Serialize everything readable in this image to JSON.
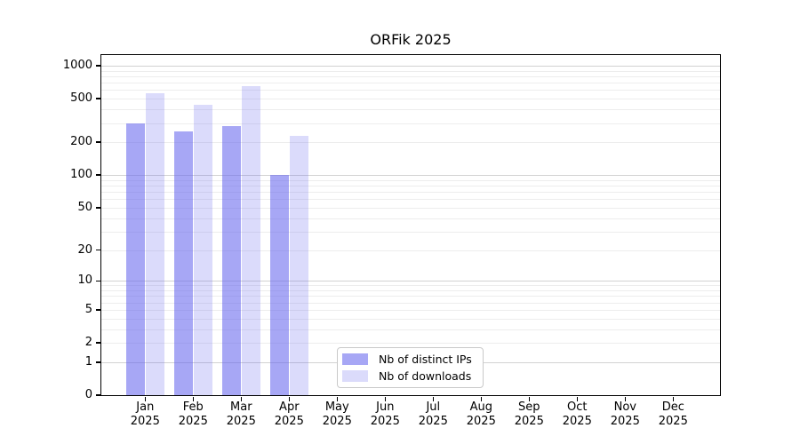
{
  "chart_data": {
    "type": "bar",
    "title": "ORFik 2025",
    "categories": [
      "Jan",
      "Feb",
      "Mar",
      "Apr",
      "May",
      "Jun",
      "Jul",
      "Aug",
      "Sep",
      "Oct",
      "Nov",
      "Dec"
    ],
    "category_year_line": "2025",
    "series": [
      {
        "name": "Nb of distinct IPs",
        "color": "rgba(100,100,237,0.57)",
        "values": [
          300,
          250,
          280,
          100,
          null,
          null,
          null,
          null,
          null,
          null,
          null,
          null
        ]
      },
      {
        "name": "Nb of downloads",
        "color": "rgba(100,100,237,0.23)",
        "values": [
          560,
          440,
          650,
          230,
          null,
          null,
          null,
          null,
          null,
          null,
          null,
          null
        ]
      }
    ],
    "y_axis": {
      "scale": "log10(1+y)",
      "ticks": [
        0,
        1,
        2,
        5,
        10,
        20,
        50,
        100,
        200,
        500,
        1000
      ],
      "major_gridlines": [
        1,
        10,
        100,
        1000
      ],
      "minor_gridline_decades": [
        1,
        10,
        100
      ],
      "ylim": [
        0,
        1250
      ]
    },
    "xlabel": "",
    "ylabel": "",
    "grid": true,
    "legend": {
      "position": "lower center",
      "entries": [
        "Nb of distinct IPs",
        "Nb of downloads"
      ]
    }
  },
  "colors": {
    "background": "#ffffff",
    "spine": "#000000",
    "gridline_major": "#d2d2d2",
    "gridline_minor": "#ededed",
    "bar_distinct_ips": "rgba(100,100,237,0.57)",
    "bar_downloads": "rgba(100,100,237,0.23)",
    "legend_border": "#c9c9c9"
  }
}
